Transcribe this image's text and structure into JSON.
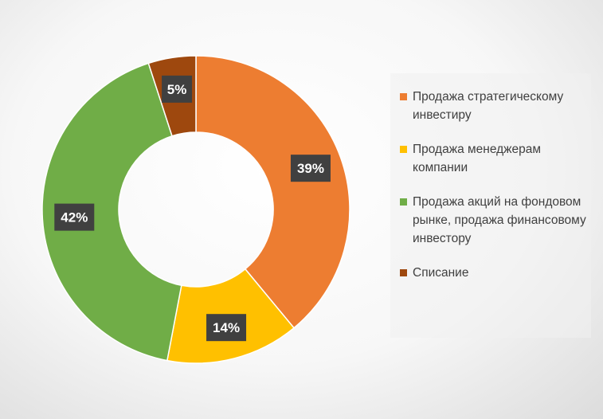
{
  "chart_data": {
    "type": "pie",
    "donut": true,
    "start_angle_deg": 0,
    "direction": "clockwise",
    "slices": [
      {
        "label": "Продажа стратегическому инвестиру",
        "value": 39,
        "display": "39%",
        "color": "#ED7D31"
      },
      {
        "label": "Продажа менеджерам компании",
        "value": 14,
        "display": "14%",
        "color": "#FFC000"
      },
      {
        "label": "Продажа акций на фондовом рынке, продажа финансовому инвестору",
        "value": 42,
        "display": "42%",
        "color": "#70AD47"
      },
      {
        "label": "Списание",
        "value": 5,
        "display": "5%",
        "color": "#9E480E"
      }
    ],
    "legend": {
      "position": "right",
      "items": [
        "Продажа стратегическому инвестиру",
        "Продажа менеджерам компании",
        "Продажа акций на фондовом рынке, продажа финансовому инвестору",
        "Списание"
      ]
    }
  }
}
